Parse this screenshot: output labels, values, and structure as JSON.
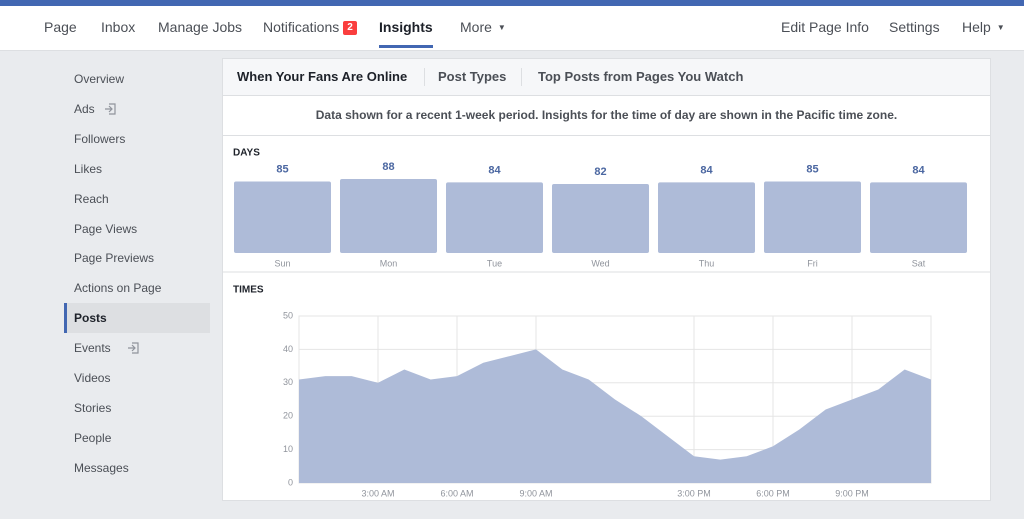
{
  "nav": {
    "left": [
      "Page",
      "Inbox",
      "Manage Jobs",
      "Notifications",
      "Insights",
      "More"
    ],
    "badge": "2",
    "active_index": 4,
    "right": [
      "Edit Page Info",
      "Settings",
      "Help"
    ]
  },
  "sidebar": {
    "items": [
      "Overview",
      "Ads",
      "Followers",
      "Likes",
      "Reach",
      "Page Views",
      "Page Previews",
      "Actions on Page",
      "Posts",
      "Events",
      "Videos",
      "Stories",
      "People",
      "Messages"
    ],
    "selected_index": 8
  },
  "tabs": [
    "When Your Fans Are Online",
    "Post Types",
    "Top Posts from Pages You Watch"
  ],
  "notice": "Data shown for a recent 1-week period. Insights for the time of day are shown in the Pacific time zone.",
  "chart_data": [
    {
      "type": "bar",
      "title": "DAYS",
      "categories": [
        "Sun",
        "Mon",
        "Tue",
        "Wed",
        "Thu",
        "Fri",
        "Sat"
      ],
      "values": [
        85,
        88,
        84,
        82,
        84,
        85,
        84
      ],
      "color": "#aebbd8"
    },
    {
      "type": "area",
      "title": "TIMES",
      "x": [
        0,
        1,
        2,
        3,
        4,
        5,
        6,
        7,
        8,
        9,
        10,
        11,
        12,
        13,
        14,
        15,
        16,
        17,
        18,
        19,
        20,
        21,
        22,
        23,
        24
      ],
      "values": [
        31,
        32,
        32,
        30,
        34,
        31,
        32,
        36,
        38,
        40,
        34,
        31,
        25,
        20,
        14,
        8,
        7,
        8,
        11,
        16,
        22,
        25,
        28,
        34,
        31
      ],
      "xlim": [
        0,
        24
      ],
      "ylim": [
        0,
        50
      ],
      "yticks": [
        0,
        10,
        20,
        30,
        40,
        50
      ],
      "xticks": [
        {
          "value": 3,
          "label": "3:00 AM"
        },
        {
          "value": 6,
          "label": "6:00 AM"
        },
        {
          "value": 9,
          "label": "9:00 AM"
        },
        {
          "value": 15,
          "label": "3:00 PM"
        },
        {
          "value": 18,
          "label": "6:00 PM"
        },
        {
          "value": 21,
          "label": "9:00 PM"
        }
      ],
      "grid": true,
      "color": "#aebbd8"
    }
  ]
}
